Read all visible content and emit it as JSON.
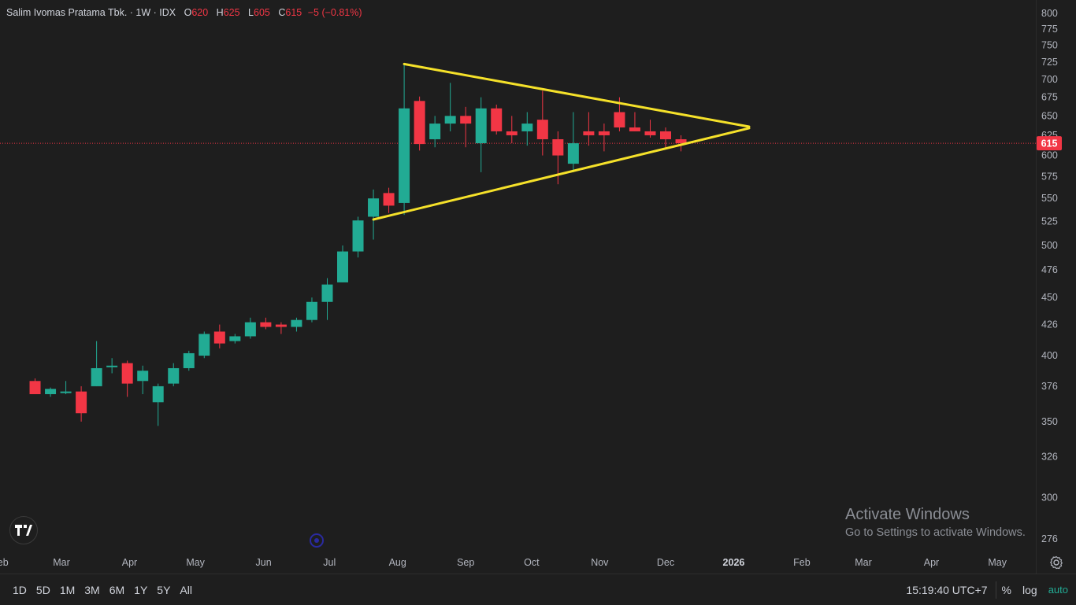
{
  "legend": {
    "symbol": "Salim Ivomas Pratama Tbk. · 1W · IDX",
    "o_label": "O",
    "o_value": "620",
    "h_label": "H",
    "h_value": "625",
    "l_label": "L",
    "l_value": "605",
    "c_label": "C",
    "c_value": "615",
    "change": "−5 (−0.81%)"
  },
  "toolbar": {
    "ranges": [
      "1D",
      "5D",
      "1M",
      "3M",
      "6M",
      "1Y",
      "5Y",
      "All"
    ],
    "clock": "15:19:40 UTC+7",
    "percent": "%",
    "log": "log",
    "auto": "auto"
  },
  "watermark": {
    "title": "Activate Windows",
    "subtitle": "Go to Settings to activate Windows."
  },
  "colors": {
    "up": "#22ab94",
    "down": "#f23645",
    "pattern": "#f5e12a",
    "background": "#1e1e1e",
    "price_label_bg": "#f23645"
  },
  "icons": [
    "tradingview-logo-icon",
    "event-marker-icon",
    "settings-gear-icon"
  ],
  "chart_data": {
    "type": "candlestick",
    "interval": "1W",
    "y_scale": "log",
    "price_ticks": [
      800,
      775,
      750,
      725,
      700,
      675,
      650,
      625,
      600,
      575,
      550,
      525,
      500,
      476,
      450,
      426,
      400,
      376,
      350,
      326,
      300,
      276
    ],
    "x_tick_labels": [
      "Feb",
      "Mar",
      "Apr",
      "May",
      "Jun",
      "Jul",
      "Aug",
      "Sep",
      "Oct",
      "Nov",
      "Dec",
      "2026",
      "Feb",
      "Mar",
      "Apr",
      "May"
    ],
    "x_tick_dates": [
      "2025-02-01",
      "2025-03-01",
      "2025-04-01",
      "2025-05-01",
      "2025-06-01",
      "2025-07-01",
      "2025-08-01",
      "2025-09-01",
      "2025-10-01",
      "2025-11-01",
      "2025-12-01",
      "2026-01-01",
      "2026-02-01",
      "2026-03-01",
      "2026-04-01",
      "2026-05-01"
    ],
    "last_price": 615,
    "candles": [
      {
        "date": "2025-02-17",
        "o": 380,
        "h": 382,
        "l": 370,
        "c": 370
      },
      {
        "date": "2025-02-24",
        "o": 370,
        "h": 375,
        "l": 368,
        "c": 374
      },
      {
        "date": "2025-03-03",
        "o": 372,
        "h": 380,
        "l": 370,
        "c": 372
      },
      {
        "date": "2025-03-10",
        "o": 372,
        "h": 376,
        "l": 350,
        "c": 356
      },
      {
        "date": "2025-03-17",
        "o": 376,
        "h": 412,
        "l": 376,
        "c": 390
      },
      {
        "date": "2025-03-24",
        "o": 392,
        "h": 398,
        "l": 386,
        "c": 392
      },
      {
        "date": "2025-03-31",
        "o": 394,
        "h": 396,
        "l": 368,
        "c": 378
      },
      {
        "date": "2025-04-07",
        "o": 380,
        "h": 392,
        "l": 370,
        "c": 388
      },
      {
        "date": "2025-04-14",
        "o": 364,
        "h": 378,
        "l": 347,
        "c": 376
      },
      {
        "date": "2025-04-21",
        "o": 378,
        "h": 394,
        "l": 376,
        "c": 390
      },
      {
        "date": "2025-04-28",
        "o": 390,
        "h": 404,
        "l": 388,
        "c": 402
      },
      {
        "date": "2025-05-05",
        "o": 400,
        "h": 420,
        "l": 398,
        "c": 418
      },
      {
        "date": "2025-05-12",
        "o": 420,
        "h": 426,
        "l": 406,
        "c": 410
      },
      {
        "date": "2025-05-19",
        "o": 412,
        "h": 418,
        "l": 410,
        "c": 416
      },
      {
        "date": "2025-05-26",
        "o": 416,
        "h": 432,
        "l": 414,
        "c": 428
      },
      {
        "date": "2025-06-02",
        "o": 428,
        "h": 432,
        "l": 422,
        "c": 424
      },
      {
        "date": "2025-06-09",
        "o": 426,
        "h": 428,
        "l": 418,
        "c": 424
      },
      {
        "date": "2025-06-16",
        "o": 424,
        "h": 432,
        "l": 420,
        "c": 430
      },
      {
        "date": "2025-06-23",
        "o": 430,
        "h": 450,
        "l": 428,
        "c": 446
      },
      {
        "date": "2025-06-30",
        "o": 446,
        "h": 468,
        "l": 430,
        "c": 462
      },
      {
        "date": "2025-07-07",
        "o": 464,
        "h": 500,
        "l": 464,
        "c": 494
      },
      {
        "date": "2025-07-14",
        "o": 494,
        "h": 530,
        "l": 488,
        "c": 526
      },
      {
        "date": "2025-07-21",
        "o": 530,
        "h": 560,
        "l": 506,
        "c": 550
      },
      {
        "date": "2025-07-28",
        "o": 556,
        "h": 562,
        "l": 534,
        "c": 542
      },
      {
        "date": "2025-08-04",
        "o": 545,
        "h": 722,
        "l": 532,
        "c": 660
      },
      {
        "date": "2025-08-11",
        "o": 670,
        "h": 676,
        "l": 606,
        "c": 614
      },
      {
        "date": "2025-08-18",
        "o": 620,
        "h": 650,
        "l": 610,
        "c": 640
      },
      {
        "date": "2025-08-25",
        "o": 640,
        "h": 695,
        "l": 630,
        "c": 650
      },
      {
        "date": "2025-09-01",
        "o": 650,
        "h": 662,
        "l": 610,
        "c": 640
      },
      {
        "date": "2025-09-08",
        "o": 615,
        "h": 675,
        "l": 580,
        "c": 660
      },
      {
        "date": "2025-09-15",
        "o": 660,
        "h": 665,
        "l": 626,
        "c": 630
      },
      {
        "date": "2025-09-22",
        "o": 630,
        "h": 650,
        "l": 615,
        "c": 625
      },
      {
        "date": "2025-09-29",
        "o": 630,
        "h": 655,
        "l": 612,
        "c": 640
      },
      {
        "date": "2025-10-06",
        "o": 645,
        "h": 684,
        "l": 600,
        "c": 620
      },
      {
        "date": "2025-10-13",
        "o": 620,
        "h": 630,
        "l": 566,
        "c": 600
      },
      {
        "date": "2025-10-20",
        "o": 590,
        "h": 655,
        "l": 580,
        "c": 615
      },
      {
        "date": "2025-10-27",
        "o": 630,
        "h": 655,
        "l": 612,
        "c": 625
      },
      {
        "date": "2025-11-03",
        "o": 630,
        "h": 640,
        "l": 605,
        "c": 625
      },
      {
        "date": "2025-11-10",
        "o": 655,
        "h": 675,
        "l": 630,
        "c": 635
      },
      {
        "date": "2025-11-17",
        "o": 635,
        "h": 655,
        "l": 630,
        "c": 630
      },
      {
        "date": "2025-11-24",
        "o": 630,
        "h": 645,
        "l": 622,
        "c": 625
      },
      {
        "date": "2025-12-01",
        "o": 630,
        "h": 635,
        "l": 610,
        "c": 620
      },
      {
        "date": "2025-12-08",
        "o": 620,
        "h": 625,
        "l": 605,
        "c": 615
      }
    ],
    "trendlines": [
      {
        "name": "upper",
        "from": {
          "date": "2025-08-04",
          "price": 722
        },
        "to": {
          "date": "2026-01-08",
          "price": 636
        }
      },
      {
        "name": "lower",
        "from": {
          "date": "2025-07-21",
          "price": 527
        },
        "to": {
          "date": "2026-01-08",
          "price": 634
        }
      }
    ]
  }
}
